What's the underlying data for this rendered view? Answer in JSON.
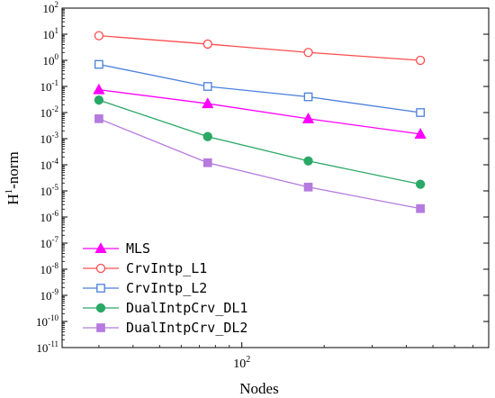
{
  "chart_data": {
    "type": "line",
    "title": "",
    "xlabel": "Nodes",
    "ylabel_base": "H",
    "ylabel_sup": "1",
    "ylabel_rest": "-norm",
    "x_scale": "log",
    "y_scale": "log",
    "xlim": [
      22,
      800
    ],
    "ylim_exp": [
      -11,
      2
    ],
    "x_ticks": [
      {
        "value": 100,
        "base": "10",
        "exp": "2"
      }
    ],
    "y_ticks": [
      {
        "base": "10",
        "exp": "2"
      },
      {
        "base": "10",
        "exp": "1"
      },
      {
        "base": "10",
        "exp": "0"
      },
      {
        "base": "10",
        "exp": "-1"
      },
      {
        "base": "10",
        "exp": "-2"
      },
      {
        "base": "10",
        "exp": "-3"
      },
      {
        "base": "10",
        "exp": "-4"
      },
      {
        "base": "10",
        "exp": "-5"
      },
      {
        "base": "10",
        "exp": "-6"
      },
      {
        "base": "10",
        "exp": "-7"
      },
      {
        "base": "10",
        "exp": "-8"
      },
      {
        "base": "10",
        "exp": "-9"
      },
      {
        "base": "10",
        "exp": "-10"
      },
      {
        "base": "10",
        "exp": "-11"
      }
    ],
    "grid": false,
    "legend_position": "bottom-left",
    "x": [
      30,
      75,
      175,
      450
    ],
    "series": [
      {
        "name": "MLS",
        "color": "#ff00ff",
        "marker": "triangle",
        "filled": true,
        "values": [
          0.075,
          0.022,
          0.0058,
          0.0015
        ]
      },
      {
        "name": "CrvIntp_L1",
        "color": "#ff4d4d",
        "marker": "circle",
        "filled": false,
        "values": [
          8.8,
          4.2,
          2.0,
          1.0
        ]
      },
      {
        "name": "CrvIntp_L2",
        "color": "#4a7fdc",
        "marker": "square",
        "filled": false,
        "values": [
          0.7,
          0.1,
          0.04,
          0.01
        ]
      },
      {
        "name": "DualIntpCrv_DL1",
        "color": "#2aa866",
        "marker": "circle",
        "filled": true,
        "values": [
          0.03,
          0.0012,
          0.00014,
          1.8e-05
        ]
      },
      {
        "name": "DualIntpCrv_DL2",
        "color": "#b57bde",
        "marker": "square",
        "filled": true,
        "values": [
          0.0058,
          0.00012,
          1.4e-05,
          2.1e-06
        ]
      }
    ]
  }
}
